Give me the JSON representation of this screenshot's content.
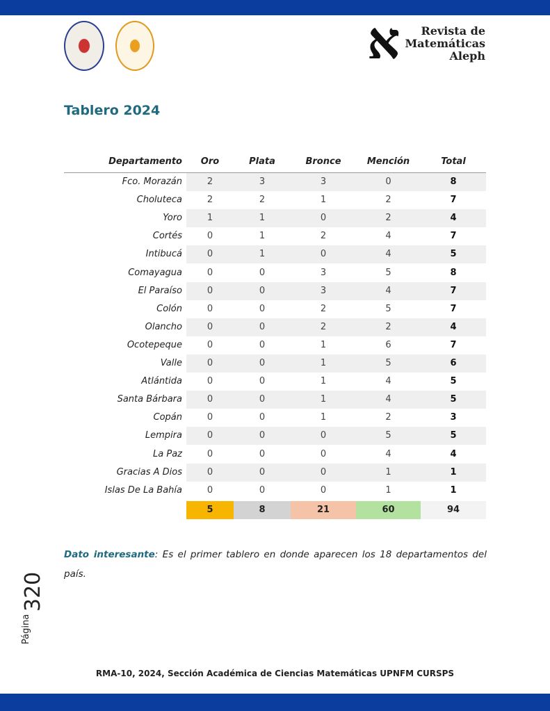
{
  "header": {
    "logo_symbol": "א",
    "journal": [
      "Revista de",
      "Matemáticas",
      "Aleph"
    ]
  },
  "title": "Tablero 2024",
  "table": {
    "columns": [
      "Departamento",
      "Oro",
      "Plata",
      "Bronce",
      "Mención",
      "Total"
    ],
    "rows": [
      [
        "Fco. Morazán",
        2,
        3,
        3,
        0,
        8
      ],
      [
        "Choluteca",
        2,
        2,
        1,
        2,
        7
      ],
      [
        "Yoro",
        1,
        1,
        0,
        2,
        4
      ],
      [
        "Cortés",
        0,
        1,
        2,
        4,
        7
      ],
      [
        "Intibucá",
        0,
        1,
        0,
        4,
        5
      ],
      [
        "Comayagua",
        0,
        0,
        3,
        5,
        8
      ],
      [
        "El Paraíso",
        0,
        0,
        3,
        4,
        7
      ],
      [
        "Colón",
        0,
        0,
        2,
        5,
        7
      ],
      [
        "Olancho",
        0,
        0,
        2,
        2,
        4
      ],
      [
        "Ocotepeque",
        0,
        0,
        1,
        6,
        7
      ],
      [
        "Valle",
        0,
        0,
        1,
        5,
        6
      ],
      [
        "Atlántida",
        0,
        0,
        1,
        4,
        5
      ],
      [
        "Santa Bárbara",
        0,
        0,
        1,
        4,
        5
      ],
      [
        "Copán",
        0,
        0,
        1,
        2,
        3
      ],
      [
        "Lempira",
        0,
        0,
        0,
        5,
        5
      ],
      [
        "La Paz",
        0,
        0,
        0,
        4,
        4
      ],
      [
        "Gracias A Dios",
        0,
        0,
        0,
        1,
        1
      ],
      [
        "Islas De La Bahía",
        0,
        0,
        0,
        1,
        1
      ]
    ],
    "totals": [
      5,
      8,
      21,
      60,
      94
    ]
  },
  "note": {
    "label": "Dato interesante",
    "text": ": Es el primer tablero en donde aparecen los 18 departamentos del país."
  },
  "page": {
    "word": "Página",
    "number": "320"
  },
  "footer": "RMA-10, 2024, Sección Académica de Ciencias Matemáticas UPNFM CURSPS"
}
